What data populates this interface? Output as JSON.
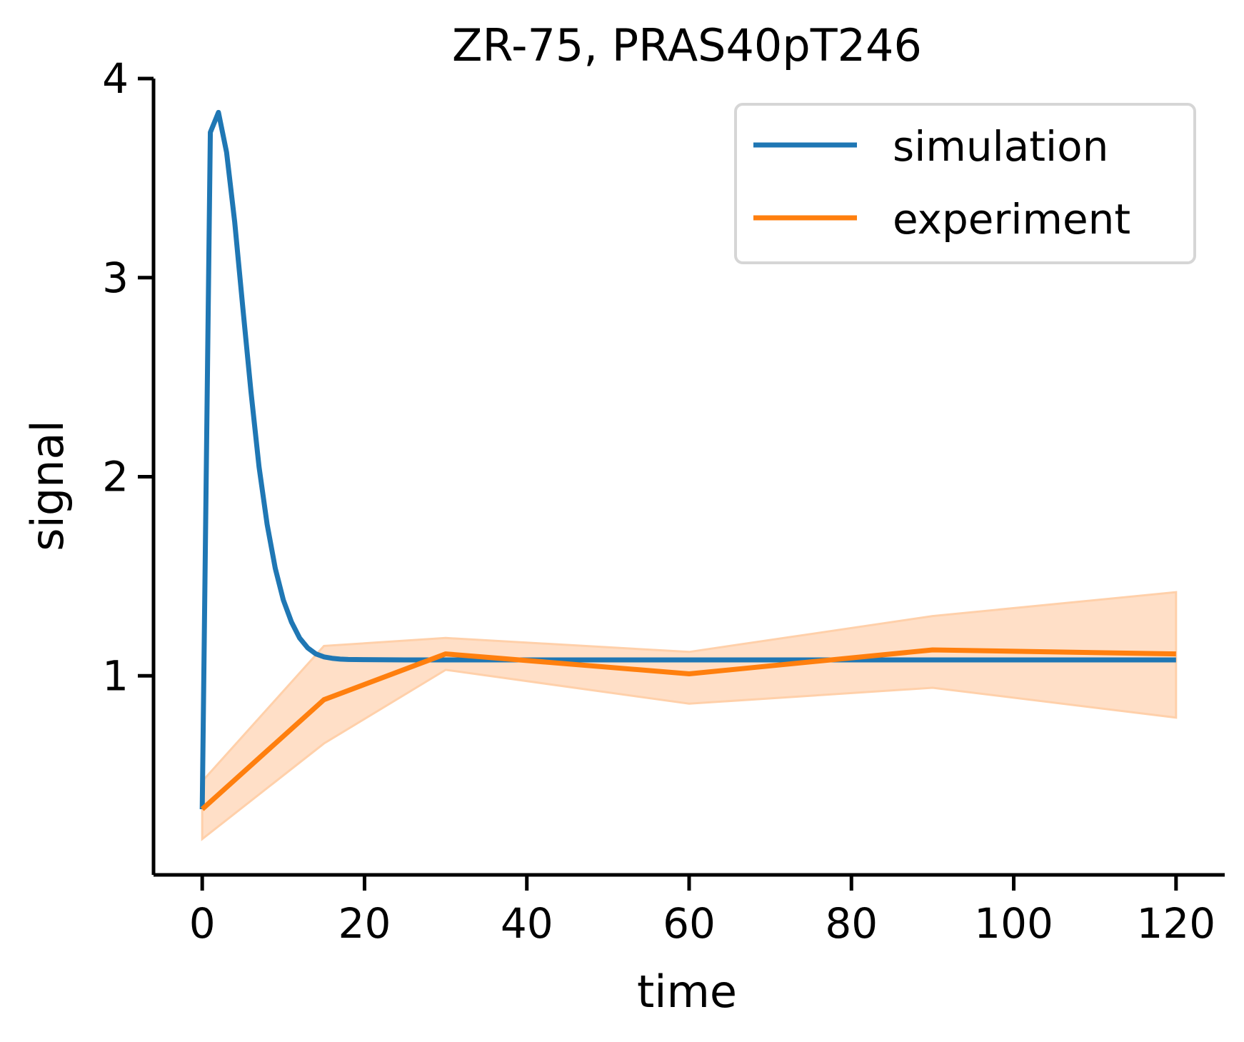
{
  "chart_data": {
    "type": "line",
    "title": "ZR-75, PRAS40pT246",
    "xlabel": "time",
    "ylabel": "signal",
    "xlim": [
      -6,
      126
    ],
    "ylim": [
      0.0,
      4.0
    ],
    "x_ticks": [
      0,
      20,
      40,
      60,
      80,
      100,
      120
    ],
    "y_ticks": [
      1,
      2,
      3,
      4
    ],
    "grid": false,
    "legend_position": "top-right",
    "series": [
      {
        "name": "simulation",
        "color": "#1f77b4",
        "x": [
          0,
          1,
          2,
          3,
          4,
          5,
          6,
          7,
          8,
          9,
          10,
          11,
          12,
          13,
          14,
          15,
          16,
          17,
          18,
          20,
          25,
          30,
          40,
          60,
          80,
          100,
          120
        ],
        "y": [
          0.33,
          3.73,
          3.83,
          3.63,
          3.28,
          2.85,
          2.43,
          2.05,
          1.76,
          1.54,
          1.38,
          1.27,
          1.19,
          1.14,
          1.11,
          1.095,
          1.088,
          1.084,
          1.082,
          1.081,
          1.08,
          1.08,
          1.08,
          1.08,
          1.08,
          1.08,
          1.08
        ]
      },
      {
        "name": "experiment",
        "color": "#ff7f0e",
        "x": [
          0,
          15,
          30,
          60,
          90,
          120
        ],
        "y": [
          0.33,
          0.88,
          1.11,
          1.01,
          1.13,
          1.11
        ],
        "band_lower": [
          0.18,
          0.66,
          1.03,
          0.86,
          0.94,
          0.79
        ],
        "band_upper": [
          0.47,
          1.15,
          1.19,
          1.12,
          1.3,
          1.42
        ],
        "band_color": "#ffdfc7"
      }
    ]
  }
}
